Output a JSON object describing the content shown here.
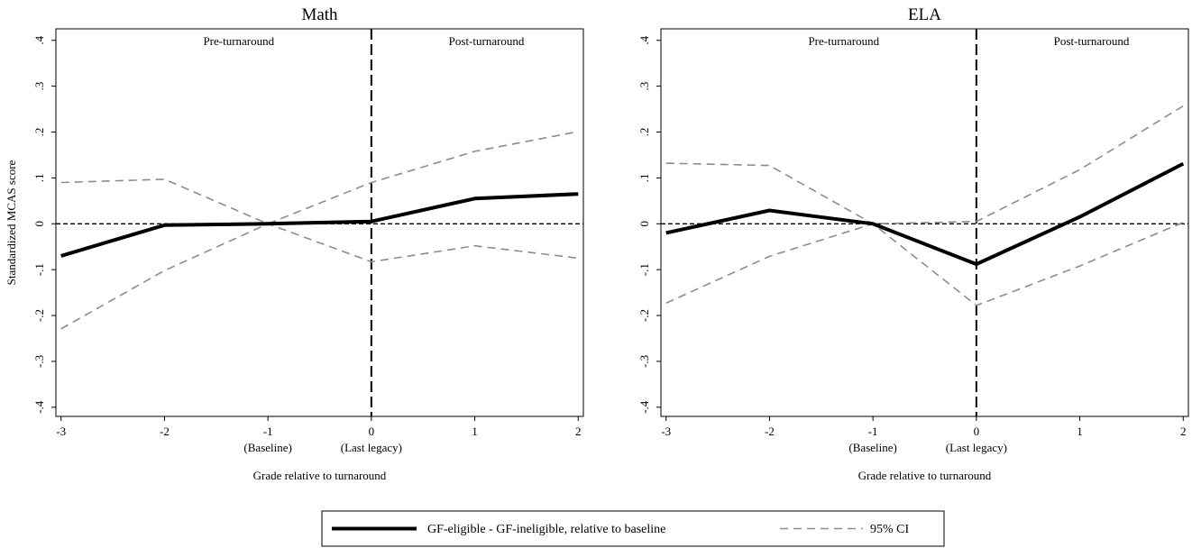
{
  "chart_data": [
    {
      "type": "line",
      "title": "Math",
      "xlabel": "Grade relative to turnaround",
      "ylabel": "Standardized MCAS score",
      "x": [
        -3,
        -2,
        -1,
        0,
        1,
        2
      ],
      "xlim": [
        -3.05,
        2.05
      ],
      "ylim": [
        -0.42,
        0.425
      ],
      "xticks": [
        {
          "value": -3,
          "label": "-3",
          "sub": ""
        },
        {
          "value": -2,
          "label": "-2",
          "sub": ""
        },
        {
          "value": -1,
          "label": "-1",
          "sub": "(Baseline)"
        },
        {
          "value": 0,
          "label": "0",
          "sub": "(Last legacy)"
        },
        {
          "value": 1,
          "label": "1",
          "sub": ""
        },
        {
          "value": 2,
          "label": "2",
          "sub": ""
        }
      ],
      "yticks": [
        {
          "value": -0.4,
          "label": "-.4"
        },
        {
          "value": -0.3,
          "label": "-.3"
        },
        {
          "value": -0.2,
          "label": "-.2"
        },
        {
          "value": -0.1,
          "label": "-.1"
        },
        {
          "value": 0,
          "label": "0"
        },
        {
          "value": 0.1,
          "label": ".1"
        },
        {
          "value": 0.2,
          "label": ".2"
        },
        {
          "value": 0.3,
          "label": ".3"
        },
        {
          "value": 0.4,
          "label": ".4"
        }
      ],
      "region_labels": {
        "pre": "Pre-turnaround",
        "post": "Post-turnaround"
      },
      "reference_lines": {
        "vertical_x": 0,
        "horizontal_y": 0
      },
      "series": [
        {
          "name": "GF-eligible - GF-ineligible, relative to baseline",
          "role": "estimate",
          "values": [
            -0.07,
            -0.003,
            0,
            0.005,
            0.055,
            0.065
          ]
        },
        {
          "name": "95% CI",
          "role": "ci",
          "values": [
            0.09,
            0.097,
            0,
            0.09,
            0.158,
            0.201
          ]
        },
        {
          "name": "95% CI",
          "role": "ci",
          "values": [
            -0.229,
            -0.102,
            0,
            -0.083,
            -0.048,
            -0.075
          ]
        }
      ]
    },
    {
      "type": "line",
      "title": "ELA",
      "xlabel": "Grade relative to turnaround",
      "ylabel": "",
      "x": [
        -3,
        -2,
        -1,
        0,
        1,
        2
      ],
      "xlim": [
        -3.05,
        2.05
      ],
      "ylim": [
        -0.42,
        0.425
      ],
      "xticks": [
        {
          "value": -3,
          "label": "-3",
          "sub": ""
        },
        {
          "value": -2,
          "label": "-2",
          "sub": ""
        },
        {
          "value": -1,
          "label": "-1",
          "sub": "(Baseline)"
        },
        {
          "value": 0,
          "label": "0",
          "sub": "(Last legacy)"
        },
        {
          "value": 1,
          "label": "1",
          "sub": ""
        },
        {
          "value": 2,
          "label": "2",
          "sub": ""
        }
      ],
      "yticks": [
        {
          "value": -0.4,
          "label": "-.4"
        },
        {
          "value": -0.3,
          "label": "-.3"
        },
        {
          "value": -0.2,
          "label": "-.2"
        },
        {
          "value": -0.1,
          "label": "-.1"
        },
        {
          "value": 0,
          "label": "0"
        },
        {
          "value": 0.1,
          "label": ".1"
        },
        {
          "value": 0.2,
          "label": ".2"
        },
        {
          "value": 0.3,
          "label": ".3"
        },
        {
          "value": 0.4,
          "label": ".4"
        }
      ],
      "region_labels": {
        "pre": "Pre-turnaround",
        "post": "Post-turnaround"
      },
      "reference_lines": {
        "vertical_x": 0,
        "horizontal_y": 0
      },
      "series": [
        {
          "name": "GF-eligible - GF-ineligible, relative to baseline",
          "role": "estimate",
          "values": [
            -0.02,
            0.029,
            0,
            -0.088,
            0.015,
            0.131
          ]
        },
        {
          "name": "95% CI",
          "role": "ci",
          "values": [
            0.132,
            0.127,
            0,
            0.005,
            0.118,
            0.257
          ]
        },
        {
          "name": "95% CI",
          "role": "ci",
          "values": [
            -0.173,
            -0.071,
            0,
            -0.178,
            -0.092,
            0.003
          ]
        }
      ]
    }
  ],
  "legend": {
    "placement": "bottom-center",
    "items": [
      {
        "label": "GF-eligible - GF-ineligible, relative to baseline",
        "style": "solid",
        "color": "#000000"
      },
      {
        "label": "95% CI",
        "style": "dashed",
        "color": "#8c8c8c"
      }
    ]
  },
  "colors": {
    "estimate": "#000000",
    "ci": "#8c8c8c",
    "reference": "#000000"
  }
}
